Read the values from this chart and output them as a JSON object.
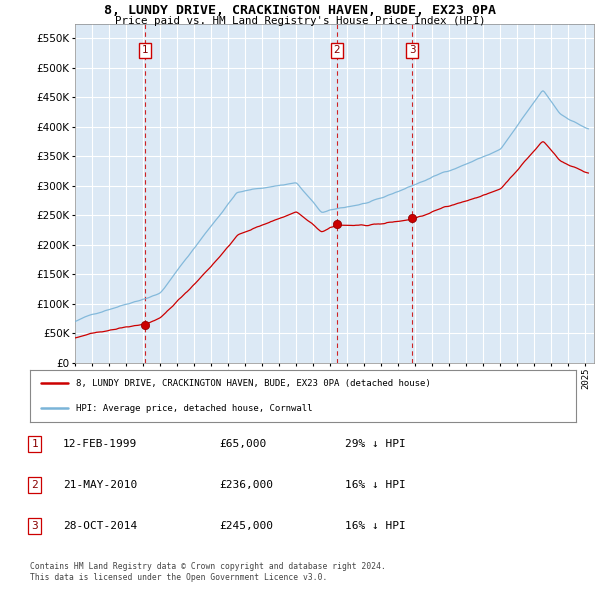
{
  "title": "8, LUNDY DRIVE, CRACKINGTON HAVEN, BUDE, EX23 0PA",
  "subtitle": "Price paid vs. HM Land Registry's House Price Index (HPI)",
  "ylim": [
    0,
    575000
  ],
  "yticks": [
    0,
    50000,
    100000,
    150000,
    200000,
    250000,
    300000,
    350000,
    400000,
    450000,
    500000,
    550000
  ],
  "xlim_start": 1995.0,
  "xlim_end": 2025.5,
  "hpi_color": "#7ab4d8",
  "price_color": "#cc0000",
  "vline_color": "#cc0000",
  "background_color": "#dce9f5",
  "grid_color": "#ffffff",
  "sales": [
    {
      "year": 1999.12,
      "price": 65000,
      "label": "1"
    },
    {
      "year": 2010.38,
      "price": 236000,
      "label": "2"
    },
    {
      "year": 2014.82,
      "price": 245000,
      "label": "3"
    }
  ],
  "legend_line1": "8, LUNDY DRIVE, CRACKINGTON HAVEN, BUDE, EX23 0PA (detached house)",
  "legend_line2": "HPI: Average price, detached house, Cornwall",
  "table_rows": [
    {
      "num": "1",
      "date": "12-FEB-1999",
      "price": "£65,000",
      "hpi": "29% ↓ HPI"
    },
    {
      "num": "2",
      "date": "21-MAY-2010",
      "price": "£236,000",
      "hpi": "16% ↓ HPI"
    },
    {
      "num": "3",
      "date": "28-OCT-2014",
      "price": "£245,000",
      "hpi": "16% ↓ HPI"
    }
  ],
  "footer": "Contains HM Land Registry data © Crown copyright and database right 2024.\nThis data is licensed under the Open Government Licence v3.0."
}
